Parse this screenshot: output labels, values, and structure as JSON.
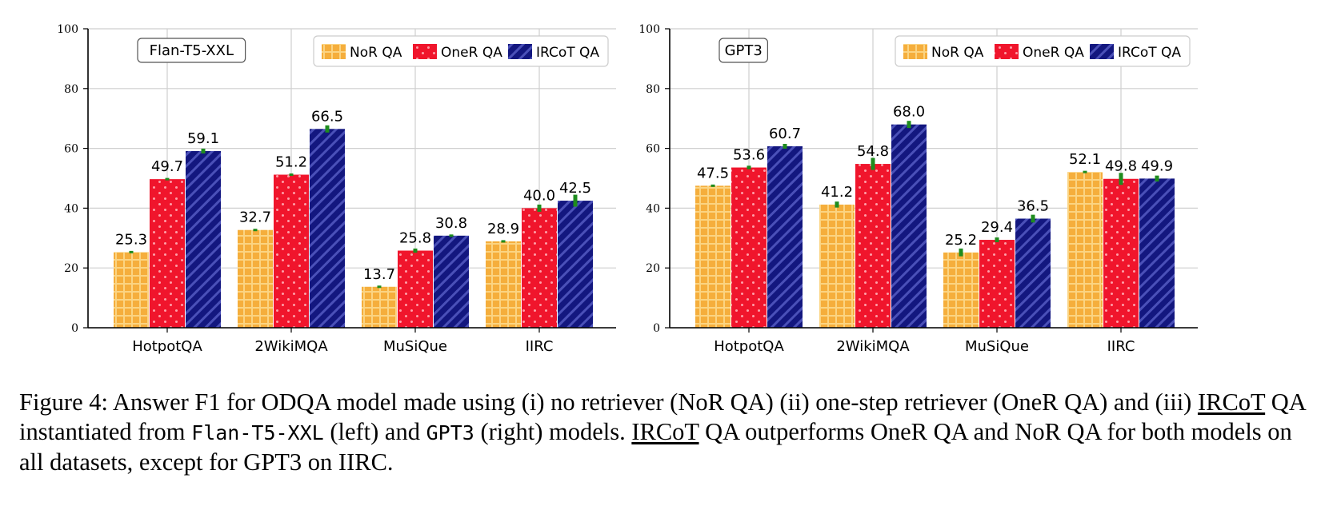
{
  "chart_data": [
    {
      "type": "bar",
      "model_label": "Flan-T5-XXL",
      "categories": [
        "HotpotQA",
        "2WikiMQA",
        "MuSiQue",
        "IIRC"
      ],
      "ylim": [
        0,
        100
      ],
      "yticks": [
        0,
        20,
        40,
        60,
        80,
        100
      ],
      "legend_position": "top-right",
      "grid": true,
      "series": [
        {
          "name": "NoR QA",
          "values": [
            25.3,
            32.7,
            13.7,
            28.9
          ],
          "errors": [
            0.3,
            0.4,
            0.3,
            0.4
          ]
        },
        {
          "name": "OneR QA",
          "values": [
            49.7,
            51.2,
            25.8,
            40.0
          ],
          "errors": [
            0.4,
            0.4,
            0.7,
            1.2
          ]
        },
        {
          "name": "IRCoT QA",
          "values": [
            59.1,
            66.5,
            30.8,
            42.5
          ],
          "errors": [
            0.8,
            1.2,
            0.2,
            2.0
          ]
        }
      ],
      "colors": {
        "NoR QA": "#F5AE3C",
        "OneR QA": "#F0152C",
        "IRCoT QA": "#13177F",
        "error": "#1E8C1E"
      }
    },
    {
      "type": "bar",
      "model_label": "GPT3",
      "categories": [
        "HotpotQA",
        "2WikiMQA",
        "MuSiQue",
        "IIRC"
      ],
      "ylim": [
        0,
        100
      ],
      "yticks": [
        0,
        20,
        40,
        60,
        80,
        100
      ],
      "legend_position": "top-right",
      "grid": true,
      "series": [
        {
          "name": "NoR QA",
          "values": [
            47.5,
            41.2,
            25.2,
            52.1
          ],
          "errors": [
            0.3,
            1.0,
            1.3,
            0.2
          ]
        },
        {
          "name": "OneR QA",
          "values": [
            53.6,
            54.8,
            29.4,
            49.8
          ],
          "errors": [
            0.6,
            2.0,
            0.8,
            2.0
          ]
        },
        {
          "name": "IRCoT QA",
          "values": [
            60.7,
            68.0,
            36.5,
            49.9
          ],
          "errors": [
            0.8,
            1.2,
            1.3,
            1.0
          ]
        }
      ],
      "colors": {
        "NoR QA": "#F5AE3C",
        "OneR QA": "#F0152C",
        "IRCoT QA": "#13177F",
        "error": "#1E8C1E"
      }
    }
  ],
  "caption": {
    "p1": "Figure 4: Answer F1 for ODQA model made using (i) no retriever (NoR QA) (ii) one-step retriever (OneR QA) and (iii) ",
    "ircot1": "IRCoT",
    "p2": " QA instantiated from ",
    "model1": "Flan-T5-XXL",
    "p3": " (left) and ",
    "model2": "GPT3",
    "p4": " (right) models. ",
    "ircot2": "IRCoT",
    "p5": " QA outperforms OneR QA and NoR QA for both models on all datasets, except for GPT3 on IIRC."
  }
}
